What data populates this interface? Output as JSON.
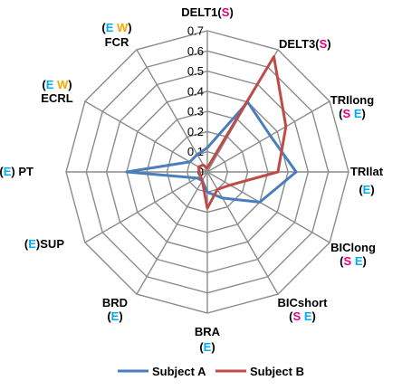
{
  "chart_data": {
    "type": "radar",
    "title": "",
    "rlim": [
      0,
      0.7
    ],
    "ticks": [
      "0",
      "0.1",
      "0.2",
      "0.3",
      "0.4",
      "0.5",
      "0.6",
      "0.7"
    ],
    "tick_values": [
      0,
      0.1,
      0.2,
      0.3,
      0.4,
      0.5,
      0.6,
      0.7
    ],
    "grid": true,
    "legend_position": "bottom",
    "categories": [
      {
        "name": "DELT1",
        "marks": [
          {
            "text": "(",
            "color": "#000000"
          },
          {
            "text": "S",
            "color": "#e3007e"
          },
          {
            "text": ")",
            "color": "#000000"
          }
        ]
      },
      {
        "name": "DELT3",
        "marks": [
          {
            "text": "(",
            "color": "#000000"
          },
          {
            "text": "S",
            "color": "#e3007e"
          },
          {
            "text": ")",
            "color": "#000000"
          }
        ]
      },
      {
        "name": "TRIlong",
        "marks": [
          {
            "text": "(",
            "color": "#000000"
          },
          {
            "text": "S",
            "color": "#e3007e"
          },
          {
            "text": " ",
            "color": "#000000"
          },
          {
            "text": "E",
            "color": "#00aeef"
          },
          {
            "text": ")",
            "color": "#000000"
          }
        ]
      },
      {
        "name": "TRIlat",
        "marks": [
          {
            "text": "(",
            "color": "#000000"
          },
          {
            "text": "E",
            "color": "#00aeef"
          },
          {
            "text": ")",
            "color": "#000000"
          }
        ]
      },
      {
        "name": "BIClong",
        "marks": [
          {
            "text": "(",
            "color": "#000000"
          },
          {
            "text": "S",
            "color": "#e3007e"
          },
          {
            "text": " ",
            "color": "#000000"
          },
          {
            "text": "E",
            "color": "#00aeef"
          },
          {
            "text": ")",
            "color": "#000000"
          }
        ]
      },
      {
        "name": "BICshort",
        "marks": [
          {
            "text": "(",
            "color": "#000000"
          },
          {
            "text": "S",
            "color": "#e3007e"
          },
          {
            "text": " ",
            "color": "#000000"
          },
          {
            "text": "E",
            "color": "#00aeef"
          },
          {
            "text": ")",
            "color": "#000000"
          }
        ]
      },
      {
        "name": "BRA",
        "marks": [
          {
            "text": "(",
            "color": "#000000"
          },
          {
            "text": "E",
            "color": "#00aeef"
          },
          {
            "text": ")",
            "color": "#000000"
          }
        ]
      },
      {
        "name": "BRD",
        "marks": [
          {
            "text": "(",
            "color": "#000000"
          },
          {
            "text": "E",
            "color": "#00aeef"
          },
          {
            "text": ")",
            "color": "#000000"
          }
        ]
      },
      {
        "name": "SUP",
        "marks": [
          {
            "text": "(",
            "color": "#000000"
          },
          {
            "text": "E",
            "color": "#00aeef"
          },
          {
            "text": ")",
            "color": "#000000"
          }
        ]
      },
      {
        "name": "PT",
        "marks": [
          {
            "text": "(",
            "color": "#000000"
          },
          {
            "text": "E",
            "color": "#00aeef"
          },
          {
            "text": ")",
            "color": "#000000"
          }
        ]
      },
      {
        "name": "ECRL",
        "marks": [
          {
            "text": "(",
            "color": "#000000"
          },
          {
            "text": "E",
            "color": "#00aeef"
          },
          {
            "text": " ",
            "color": "#000000"
          },
          {
            "text": "W",
            "color": "#f7a600"
          },
          {
            "text": ")",
            "color": "#000000"
          }
        ]
      },
      {
        "name": "FCR",
        "marks": [
          {
            "text": "(",
            "color": "#000000"
          },
          {
            "text": "E",
            "color": "#00aeef"
          },
          {
            "text": " ",
            "color": "#000000"
          },
          {
            "text": "W",
            "color": "#f7a600"
          },
          {
            "text": ")",
            "color": "#000000"
          }
        ]
      }
    ],
    "series": [
      {
        "name": "Subject A",
        "color": "#4a7ebb",
        "values": [
          0.12,
          0.4,
          0.36,
          0.44,
          0.3,
          0.15,
          0.1,
          0.05,
          0.06,
          0.4,
          0.1,
          0.1
        ]
      },
      {
        "name": "Subject B",
        "color": "#be4b48",
        "values": [
          0.02,
          0.66,
          0.45,
          0.35,
          0.13,
          0.1,
          0.18,
          0.05,
          0.04,
          0.04,
          0.05,
          0.04
        ]
      }
    ]
  }
}
